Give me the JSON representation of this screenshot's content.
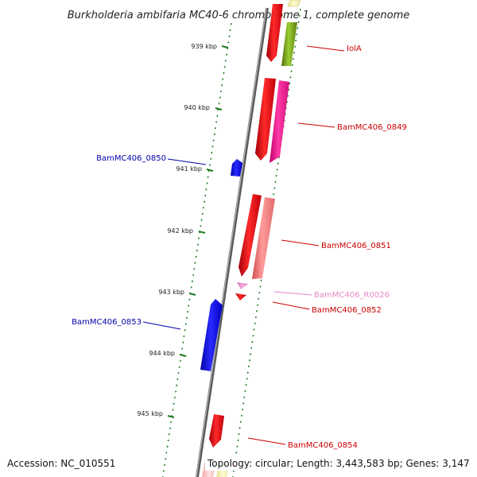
{
  "title": "Burkholderia ambifaria MC40-6 chromosome 1, complete genome",
  "footer": {
    "accession": "Accession: NC_010551",
    "summary": "Topology: circular; Length: 3,443,583 bp; Genes: 3,147"
  },
  "colors": {
    "backbone": "#7f7f7f",
    "tick": "#1f7a1f",
    "forward_red": "#e8141e",
    "reverse_blue": "#1a1ae6",
    "label_red": "#cc0000",
    "label_blue": "#0000aa",
    "label_pink": "#e989c8"
  },
  "scale_labels": [
    "939 kbp",
    "940 kbp",
    "941 kbp",
    "942 kbp",
    "943 kbp",
    "944 kbp",
    "945 kbp"
  ],
  "genes": [
    {
      "id": "g_iolA",
      "label": "IolA",
      "color": "#e8141e",
      "label_color": "#cc0000",
      "strand": "+"
    },
    {
      "id": "g_0849",
      "label": "BamMC406_0849",
      "color": "#e8141e",
      "label_color": "#cc0000",
      "strand": "+"
    },
    {
      "id": "g_0850",
      "label": "BamMC406_0850",
      "color": "#1a1ae6",
      "label_color": "#0000aa",
      "strand": "-"
    },
    {
      "id": "g_0851",
      "label": "BamMC406_0851",
      "color": "#e8141e",
      "label_color": "#cc0000",
      "strand": "+"
    },
    {
      "id": "g_R0026",
      "label": "BamMC406_R0026",
      "color": "#e989c8",
      "label_color": "#e989c8",
      "strand": "+"
    },
    {
      "id": "g_0852",
      "label": "BamMC406_0852",
      "color": "#e8141e",
      "label_color": "#cc0000",
      "strand": "+"
    },
    {
      "id": "g_0853",
      "label": "BamMC406_0853",
      "color": "#1a1ae6",
      "label_color": "#0000aa",
      "strand": "-"
    },
    {
      "id": "g_0854",
      "label": "BamMC406_0854",
      "color": "#e8141e",
      "label_color": "#cc0000",
      "strand": "+"
    }
  ]
}
